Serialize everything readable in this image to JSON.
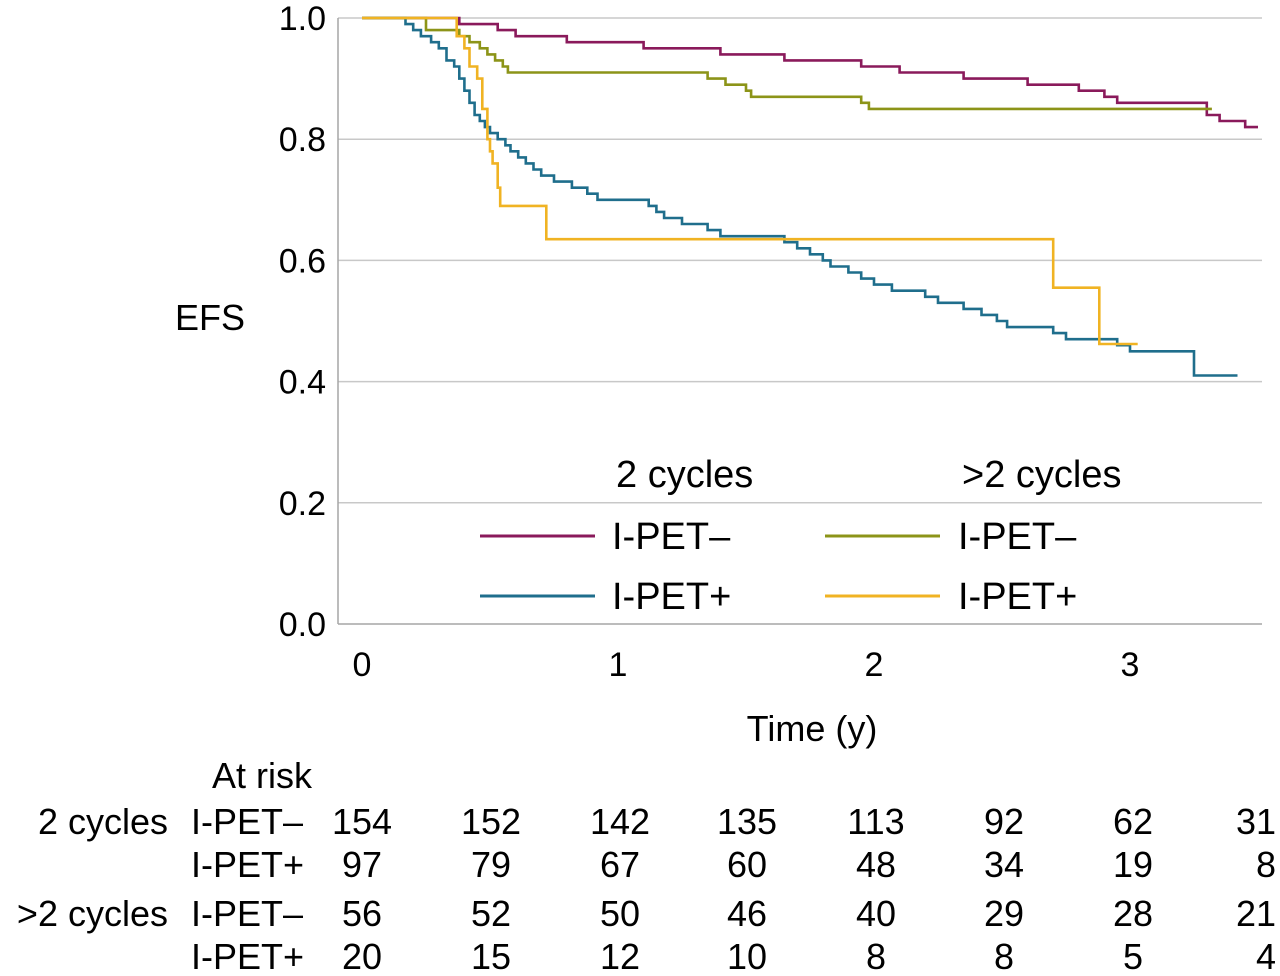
{
  "chart_data": {
    "type": "line",
    "ylabel": "EFS",
    "xlabel": "Time (y)",
    "xlim": [
      0,
      3.5
    ],
    "ylim": [
      0,
      1.0
    ],
    "x_ticks": [
      "0",
      "1",
      "2",
      "3"
    ],
    "y_ticks": [
      "0.0",
      "0.2",
      "0.4",
      "0.6",
      "0.8",
      "1.0"
    ],
    "grid": "horizontal",
    "legend": {
      "placement": "center-bottom",
      "group_headers": [
        "2 cycles",
        ">2 cycles"
      ],
      "entries": [
        {
          "group": "2 cycles",
          "label": "I-PET–",
          "color": "#8a1a5b"
        },
        {
          "group": "2 cycles",
          "label": "I-PET+",
          "color": "#1f6e8c"
        },
        {
          "group": ">2 cycles",
          "label": "I-PET–",
          "color": "#8c9418"
        },
        {
          "group": ">2 cycles",
          "label": "I-PET+",
          "color": "#f0b323"
        }
      ]
    },
    "series": [
      {
        "color": "#8a1a5b",
        "steps": [
          [
            0,
            1.0
          ],
          [
            0.38,
            0.99
          ],
          [
            0.53,
            0.98
          ],
          [
            0.6,
            0.97
          ],
          [
            0.8,
            0.96
          ],
          [
            1.1,
            0.95
          ],
          [
            1.4,
            0.94
          ],
          [
            1.65,
            0.93
          ],
          [
            1.95,
            0.92
          ],
          [
            2.1,
            0.91
          ],
          [
            2.35,
            0.9
          ],
          [
            2.6,
            0.89
          ],
          [
            2.8,
            0.88
          ],
          [
            2.9,
            0.87
          ],
          [
            2.95,
            0.86
          ],
          [
            3.3,
            0.84
          ],
          [
            3.35,
            0.83
          ],
          [
            3.45,
            0.82
          ],
          [
            3.5,
            0.82
          ]
        ]
      },
      {
        "color": "#1f6e8c",
        "steps": [
          [
            0,
            1.0
          ],
          [
            0.17,
            0.99
          ],
          [
            0.2,
            0.98
          ],
          [
            0.23,
            0.97
          ],
          [
            0.27,
            0.96
          ],
          [
            0.3,
            0.95
          ],
          [
            0.33,
            0.93
          ],
          [
            0.36,
            0.92
          ],
          [
            0.38,
            0.9
          ],
          [
            0.4,
            0.88
          ],
          [
            0.42,
            0.86
          ],
          [
            0.44,
            0.84
          ],
          [
            0.46,
            0.83
          ],
          [
            0.48,
            0.82
          ],
          [
            0.5,
            0.81
          ],
          [
            0.53,
            0.8
          ],
          [
            0.56,
            0.79
          ],
          [
            0.58,
            0.78
          ],
          [
            0.61,
            0.77
          ],
          [
            0.64,
            0.76
          ],
          [
            0.67,
            0.75
          ],
          [
            0.7,
            0.74
          ],
          [
            0.75,
            0.73
          ],
          [
            0.82,
            0.72
          ],
          [
            0.88,
            0.71
          ],
          [
            0.92,
            0.7
          ],
          [
            1.12,
            0.69
          ],
          [
            1.15,
            0.68
          ],
          [
            1.18,
            0.67
          ],
          [
            1.25,
            0.66
          ],
          [
            1.35,
            0.65
          ],
          [
            1.4,
            0.64
          ],
          [
            1.65,
            0.63
          ],
          [
            1.7,
            0.62
          ],
          [
            1.75,
            0.61
          ],
          [
            1.8,
            0.6
          ],
          [
            1.83,
            0.59
          ],
          [
            1.9,
            0.58
          ],
          [
            1.95,
            0.57
          ],
          [
            2.0,
            0.56
          ],
          [
            2.07,
            0.55
          ],
          [
            2.2,
            0.54
          ],
          [
            2.25,
            0.53
          ],
          [
            2.35,
            0.52
          ],
          [
            2.42,
            0.51
          ],
          [
            2.48,
            0.5
          ],
          [
            2.52,
            0.49
          ],
          [
            2.7,
            0.48
          ],
          [
            2.75,
            0.47
          ],
          [
            2.95,
            0.46
          ],
          [
            3.0,
            0.45
          ],
          [
            3.25,
            0.41
          ],
          [
            3.42,
            0.41
          ]
        ]
      },
      {
        "color": "#8c9418",
        "steps": [
          [
            0,
            1.0
          ],
          [
            0.25,
            0.98
          ],
          [
            0.38,
            0.97
          ],
          [
            0.42,
            0.96
          ],
          [
            0.46,
            0.95
          ],
          [
            0.49,
            0.94
          ],
          [
            0.52,
            0.93
          ],
          [
            0.55,
            0.92
          ],
          [
            0.57,
            0.91
          ],
          [
            1.35,
            0.9
          ],
          [
            1.42,
            0.89
          ],
          [
            1.5,
            0.88
          ],
          [
            1.52,
            0.87
          ],
          [
            1.95,
            0.86
          ],
          [
            1.98,
            0.85
          ],
          [
            3.32,
            0.85
          ]
        ]
      },
      {
        "color": "#f0b323",
        "steps": [
          [
            0,
            1.0
          ],
          [
            0.37,
            0.97
          ],
          [
            0.4,
            0.95
          ],
          [
            0.42,
            0.92
          ],
          [
            0.45,
            0.9
          ],
          [
            0.47,
            0.85
          ],
          [
            0.49,
            0.8
          ],
          [
            0.5,
            0.78
          ],
          [
            0.51,
            0.76
          ],
          [
            0.53,
            0.72
          ],
          [
            0.54,
            0.69
          ],
          [
            0.72,
            0.635
          ],
          [
            2.7,
            0.555
          ],
          [
            2.88,
            0.462
          ],
          [
            3.03,
            0.462
          ]
        ]
      }
    ],
    "at_risk": {
      "title": "At risk",
      "rows": [
        {
          "group": "2 cycles",
          "label": "I-PET–",
          "values": [
            "154",
            "152",
            "142",
            "135",
            "113",
            "92",
            "62",
            "31"
          ]
        },
        {
          "group": "",
          "label": "I-PET+",
          "values": [
            "97",
            "79",
            "67",
            "60",
            "48",
            "34",
            "19",
            "8"
          ]
        },
        {
          "group": ">2 cycles",
          "label": "I-PET–",
          "values": [
            "56",
            "52",
            "50",
            "46",
            "40",
            "29",
            "28",
            "21"
          ]
        },
        {
          "group": "",
          "label": "I-PET+",
          "values": [
            "20",
            "15",
            "12",
            "10",
            "8",
            "8",
            "5",
            "4"
          ]
        }
      ]
    }
  }
}
